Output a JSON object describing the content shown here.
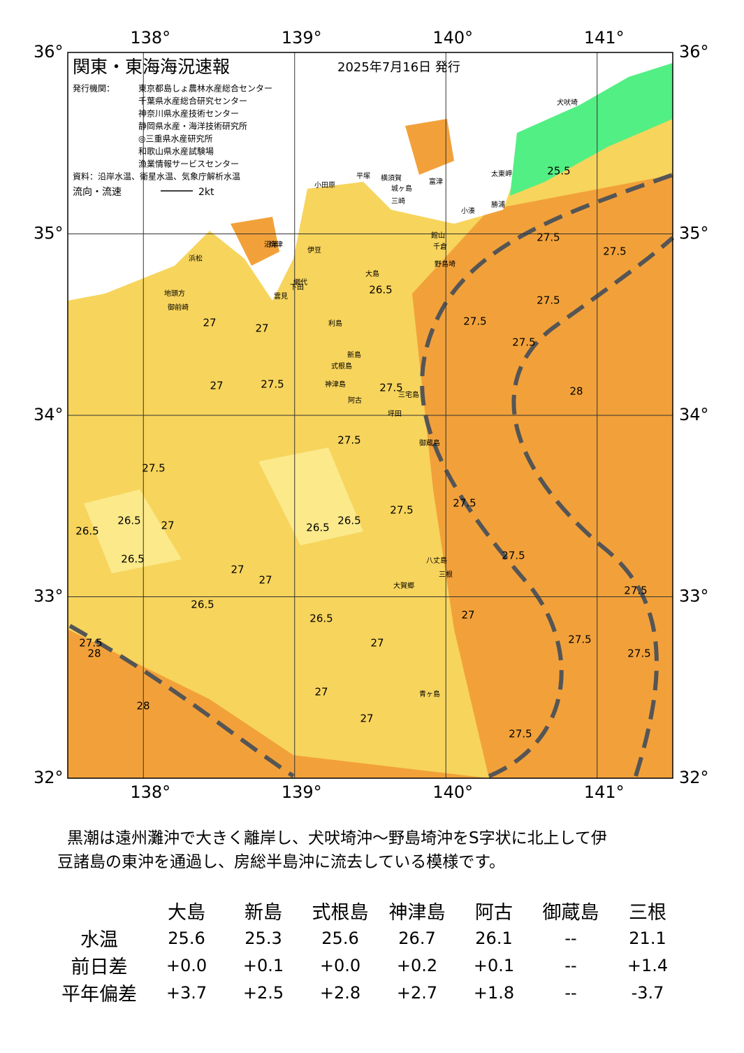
{
  "map": {
    "title": "関東・東海海況速報",
    "date": "2025年7月16日 発行",
    "issuer_label": "発行機関：",
    "issuers": [
      "東京都島しょ農林水産総合センター",
      "千葉県水産総合研究センター",
      "神奈川県水産技術センター",
      "静岡県水産・海洋技術研究所",
      "◎三重県水産研究所",
      "和歌山県水産試験場",
      "漁業情報サービスセンター"
    ],
    "source": "資料：沿岸水温、衛星水温、気象庁解析水温",
    "flow_label": "流向・流速",
    "flow_scale": "2kt",
    "lon_labels": [
      "138°",
      "139°",
      "140°",
      "141°"
    ],
    "lat_labels": [
      "36°",
      "35°",
      "34°",
      "33°",
      "32°"
    ],
    "place_names": [
      "大島",
      "利島",
      "新島",
      "式根島",
      "神津島",
      "三宅島",
      "坪田",
      "阿古",
      "御蔵島",
      "八丈島",
      "三根",
      "大賀郷",
      "青ヶ島",
      "犬吠埼",
      "太東岬",
      "勝浦",
      "小湊",
      "野島埼",
      "千倉",
      "館山",
      "富津",
      "横須賀",
      "城ヶ島",
      "三崎",
      "平塚",
      "小田原",
      "伊豆",
      "網代",
      "下田",
      "雲見",
      "沼津",
      "焼津",
      "浜松",
      "地頭方",
      "御前崎"
    ],
    "contour_labels": [
      "27.5",
      "27.5",
      "27.5",
      "27.5",
      "27.5",
      "27.5",
      "27.5",
      "27.5",
      "27.5",
      "27.5",
      "27.5",
      "27.5",
      "27.5",
      "27.5",
      "27.5",
      "27.5",
      "27.5",
      "27",
      "27",
      "27",
      "27",
      "27",
      "27",
      "27",
      "27",
      "27",
      "27",
      "26.5",
      "26.5",
      "26.5",
      "26.5",
      "26.5",
      "26.5",
      "26.5",
      "26.5",
      "28",
      "28",
      "28",
      "25.5"
    ]
  },
  "summary": [
    "黒潮は遠州灘沖で大きく離岸し、犬吠埼沖～野島埼沖をS字状に北上して伊",
    "豆諸島の東沖を通過し、房総半島沖に流去している模様です。"
  ],
  "table": {
    "stations": [
      "大島",
      "新島",
      "式根島",
      "神津島",
      "阿古",
      "御蔵島",
      "三根"
    ],
    "rows": [
      {
        "label": "水温",
        "values": [
          "25.6",
          "25.3",
          "25.6",
          "26.7",
          "26.1",
          "--",
          "21.1"
        ]
      },
      {
        "label": "前日差",
        "values": [
          "+0.0",
          "+0.1",
          "+0.0",
          "+0.2",
          "+0.1",
          "--",
          "+1.4"
        ]
      },
      {
        "label": "平年偏差",
        "values": [
          "+3.7",
          "+2.5",
          "+2.8",
          "+2.7",
          "+1.8",
          "--",
          "-3.7"
        ]
      }
    ]
  }
}
